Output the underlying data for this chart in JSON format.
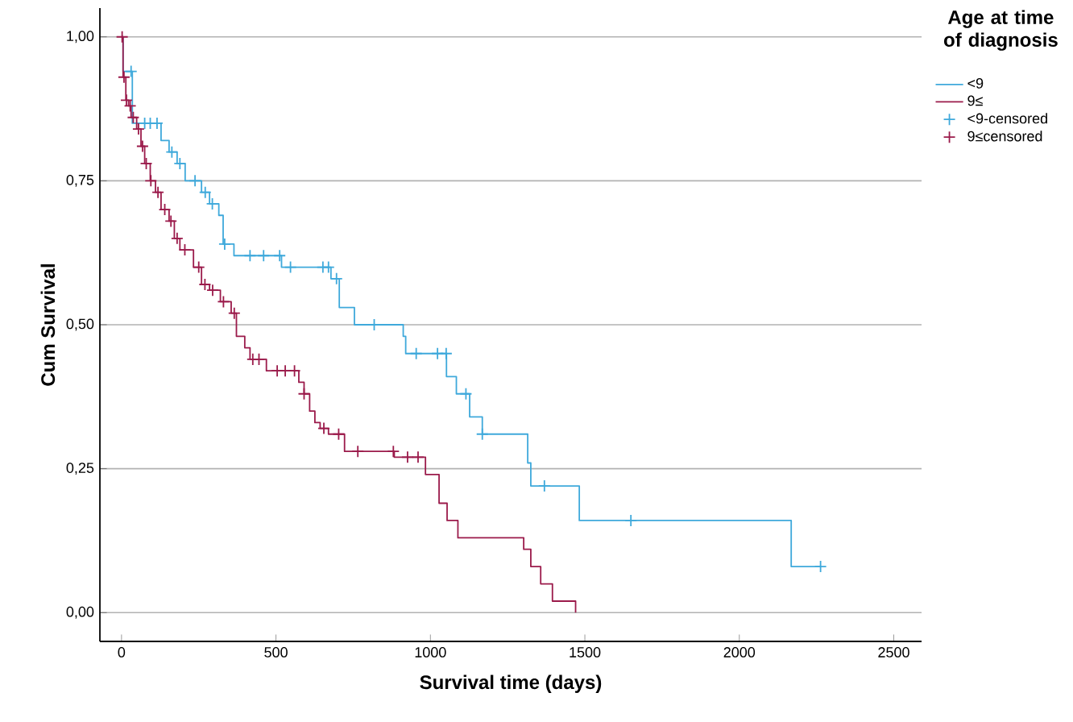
{
  "chart_data": {
    "type": "step",
    "xlabel": "Survival time (days)",
    "ylabel": "Cum Survival",
    "legend_title": "Age at time of diagnosis",
    "xlim": [
      -70,
      2590
    ],
    "ylim": [
      -0.05,
      1.05
    ],
    "xticks": [
      0,
      500,
      1000,
      1500,
      2000,
      2500
    ],
    "yticks": [
      {
        "value": 0,
        "label": "0,00"
      },
      {
        "value": 0.25,
        "label": "0,25"
      },
      {
        "value": 0.5,
        "label": "0,50"
      },
      {
        "value": 0.75,
        "label": "0,75"
      },
      {
        "value": 1,
        "label": "1,00"
      }
    ],
    "grid": "y",
    "legend": "top right",
    "series": [
      {
        "name": "<9",
        "color": "#3fa9db",
        "marker": "none",
        "x": [
          0,
          5,
          35,
          128,
          154,
          180,
          206,
          259,
          285,
          315,
          329,
          364,
          518,
          678,
          705,
          754,
          912,
          920,
          1052,
          1084,
          1127,
          1168,
          1315,
          1325,
          1482,
          2168,
          2263
        ],
        "values": [
          1.0,
          0.94,
          0.85,
          0.82,
          0.8,
          0.78,
          0.75,
          0.73,
          0.71,
          0.69,
          0.64,
          0.62,
          0.6,
          0.58,
          0.53,
          0.5,
          0.48,
          0.45,
          0.41,
          0.38,
          0.34,
          0.31,
          0.26,
          0.22,
          0.16,
          0.08,
          0.08
        ]
      },
      {
        "name": "9≤",
        "color": "#9b1b4b",
        "marker": "none",
        "x": [
          0,
          5,
          14,
          23,
          31,
          49,
          63,
          75,
          93,
          110,
          128,
          154,
          171,
          189,
          233,
          259,
          285,
          320,
          355,
          372,
          399,
          416,
          469,
          574,
          591,
          609,
          626,
          643,
          670,
          722,
          883,
          984,
          1028,
          1054,
          1089,
          1302,
          1325,
          1357,
          1395,
          1470
        ],
        "values": [
          1.0,
          0.93,
          0.89,
          0.88,
          0.86,
          0.84,
          0.81,
          0.78,
          0.75,
          0.73,
          0.7,
          0.68,
          0.65,
          0.63,
          0.6,
          0.57,
          0.56,
          0.54,
          0.52,
          0.48,
          0.46,
          0.44,
          0.42,
          0.4,
          0.38,
          0.35,
          0.33,
          0.32,
          0.31,
          0.28,
          0.27,
          0.24,
          0.19,
          0.16,
          0.13,
          0.11,
          0.08,
          0.05,
          0.02,
          0.0
        ]
      },
      {
        "name": "<9-censored",
        "type": "scatter",
        "color": "#3fa9db",
        "marker": "cross",
        "x": [
          31,
          75,
          93,
          115,
          163,
          189,
          238,
          271,
          294,
          334,
          416,
          460,
          512,
          547,
          652,
          670,
          696,
          818,
          954,
          1023,
          1051,
          1115,
          1168,
          1369,
          1649,
          2263
        ],
        "values": [
          0.94,
          0.85,
          0.85,
          0.85,
          0.8,
          0.78,
          0.75,
          0.73,
          0.71,
          0.64,
          0.62,
          0.62,
          0.62,
          0.6,
          0.6,
          0.6,
          0.58,
          0.5,
          0.45,
          0.45,
          0.45,
          0.38,
          0.31,
          0.22,
          0.16,
          0.08
        ]
      },
      {
        "name": "9≤censored",
        "type": "scatter",
        "color": "#9b1b4b",
        "marker": "cross",
        "x": [
          2,
          8,
          16,
          28,
          38,
          55,
          68,
          80,
          95,
          118,
          140,
          160,
          180,
          205,
          250,
          270,
          295,
          330,
          365,
          425,
          445,
          504,
          530,
          560,
          591,
          655,
          703,
          765,
          880,
          926,
          960
        ],
        "values": [
          1.0,
          0.93,
          0.89,
          0.88,
          0.86,
          0.84,
          0.81,
          0.78,
          0.75,
          0.73,
          0.7,
          0.68,
          0.65,
          0.63,
          0.6,
          0.57,
          0.56,
          0.54,
          0.52,
          0.44,
          0.44,
          0.42,
          0.42,
          0.42,
          0.38,
          0.32,
          0.31,
          0.28,
          0.28,
          0.27,
          0.27
        ]
      }
    ]
  }
}
